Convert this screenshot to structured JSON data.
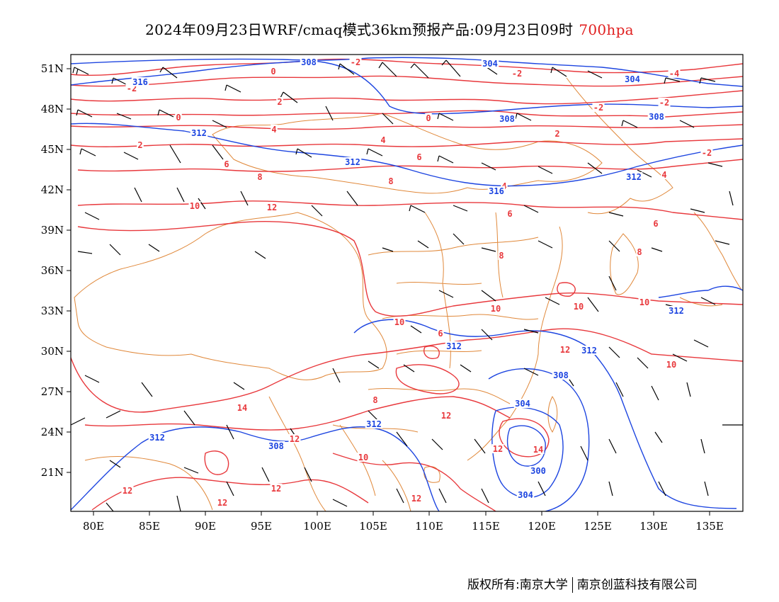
{
  "title": {
    "main": "2024年09月23日WRF/cmaq模式36km预报产品:09月23日09时",
    "level": "700hpa"
  },
  "axes": {
    "lat_labels": [
      "51N",
      "48N",
      "45N",
      "42N",
      "39N",
      "36N",
      "33N",
      "30N",
      "27N",
      "24N",
      "21N"
    ],
    "lon_labels": [
      "80E",
      "85E",
      "90E",
      "95E",
      "100E",
      "105E",
      "110E",
      "115E",
      "120E",
      "125E",
      "130E",
      "135E"
    ]
  },
  "colors": {
    "temperature": "#e8383c",
    "geopotential": "#1d45e0",
    "boundary": "#e0883a",
    "wind": "#000000"
  },
  "contour_labels": {
    "temperature": [
      "-2",
      "-2",
      "0",
      "-2",
      "-4",
      "-2",
      "-2",
      "2",
      "0",
      "0",
      "2",
      "4",
      "2",
      "-2",
      "4",
      "6",
      "4",
      "8",
      "6",
      "8",
      "10",
      "12",
      "6",
      "6",
      "8",
      "8",
      "10",
      "10",
      "10",
      "10",
      "12",
      "6",
      "10",
      "10",
      "12",
      "8",
      "12",
      "14",
      "12",
      "14",
      "12",
      "12",
      "12",
      "12",
      "4"
    ],
    "geopotential": [
      "308",
      "316",
      "304",
      "304",
      "308",
      "308",
      "312",
      "312",
      "312",
      "312",
      "312",
      "316",
      "312",
      "312",
      "308",
      "304",
      "308",
      "300",
      "304",
      "312"
    ]
  },
  "credit": {
    "left": "版权所有:南京大学",
    "right": "南京创蓝科技有限公司"
  }
}
